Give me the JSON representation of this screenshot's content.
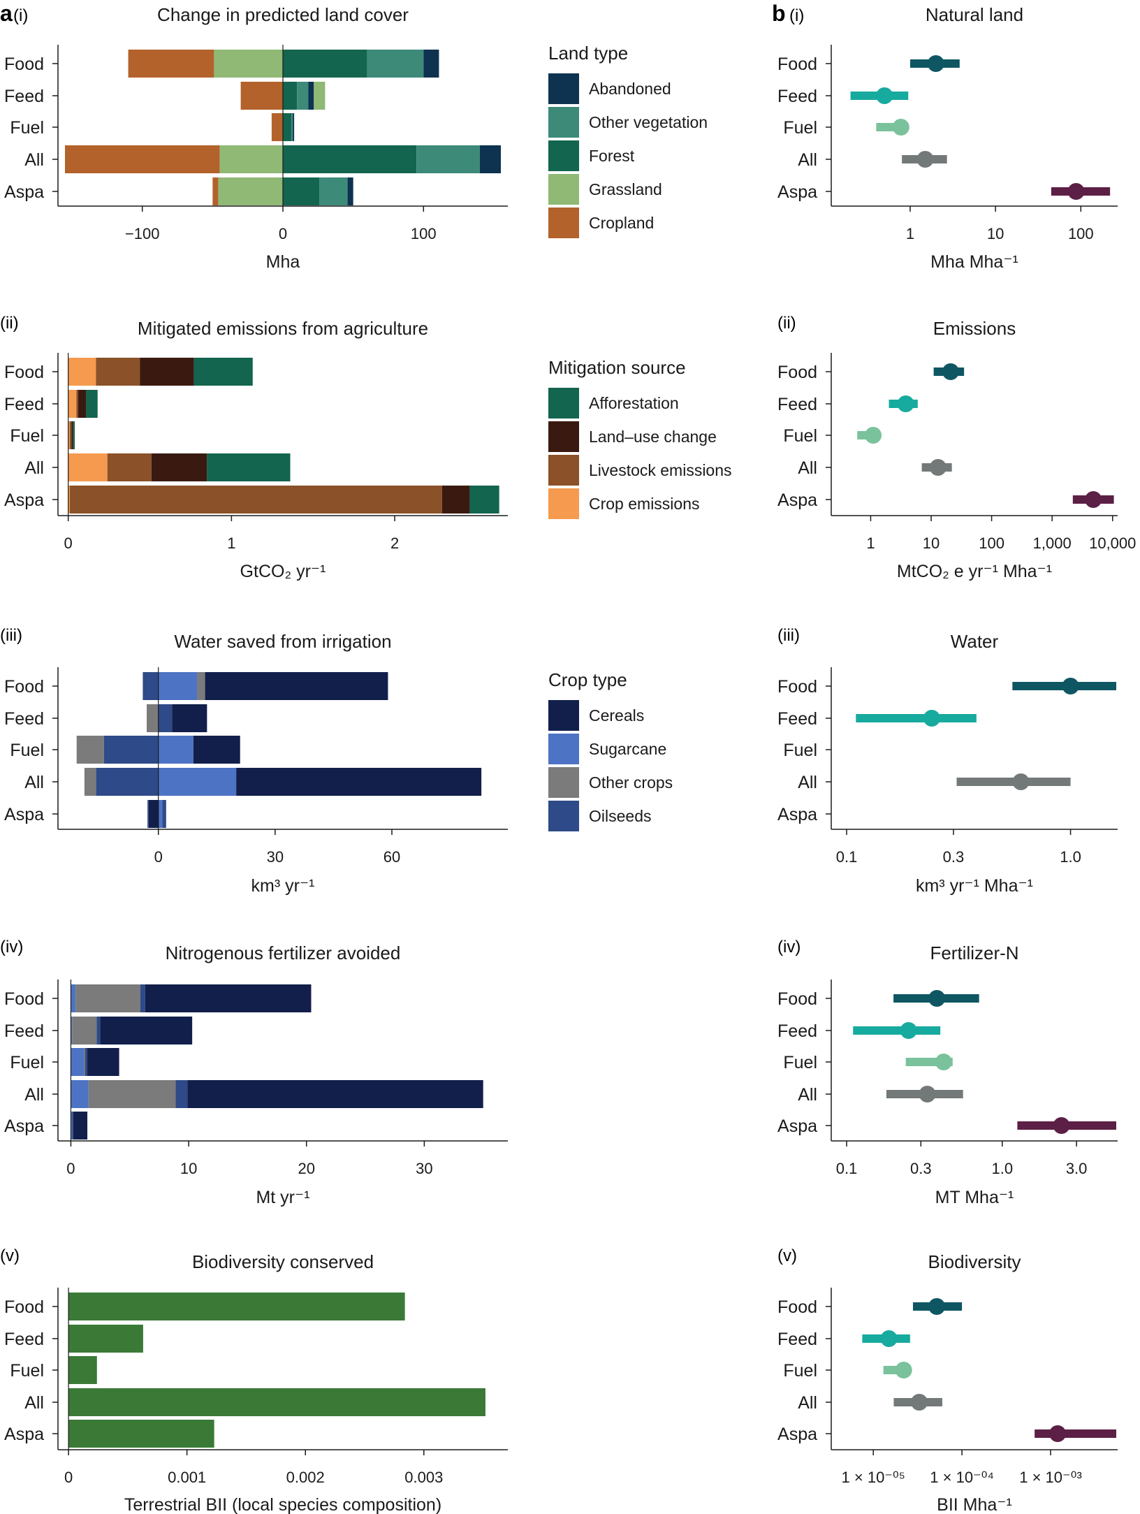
{
  "figure": {
    "panel_a_letter": "a",
    "panel_b_letter": "b",
    "row_labels": [
      "(i)",
      "(ii)",
      "(iii)",
      "(iv)",
      "(v)"
    ]
  },
  "categories": [
    "Food",
    "Feed",
    "Fuel",
    "All",
    "Aspa"
  ],
  "colors": {
    "abandoned": "#0d3350",
    "other_vegetation": "#3d8a79",
    "forest": "#13654f",
    "grassland": "#8fb975",
    "cropland": "#b3622b",
    "afforestation": "#13654f",
    "land_use_change": "#3a1a10",
    "livestock": "#8b5128",
    "crop_emissions": "#f59a4e",
    "cereals": "#121f4b",
    "sugarcane": "#4d73c4",
    "other_crops": "#7b7b7b",
    "oilseeds": "#2e4a88",
    "biodiversity": "#3a7a36",
    "dot_food": "#0f5663",
    "dot_feed": "#17aa9e",
    "dot_fuel": "#79c29b",
    "dot_all": "#737979",
    "dot_aspa": "#5c1f45",
    "axis": "#1a1a1a"
  },
  "chart_data": [
    {
      "id": "a1",
      "type": "bar",
      "orientation": "horizontal",
      "stacked": true,
      "title": "Change in predicted land cover",
      "xlabel": "Mha",
      "xlim": [
        -155,
        155
      ],
      "xticks": [
        -100,
        0,
        100
      ],
      "xticklabels": [
        "−100",
        "0",
        "100"
      ],
      "categories": [
        "Food",
        "Feed",
        "Fuel",
        "All",
        "Aspa"
      ],
      "legend_title": "Land type",
      "legend": [
        {
          "label": "Abandoned",
          "color": "#0d3350"
        },
        {
          "label": "Other vegetation",
          "color": "#3d8a79"
        },
        {
          "label": "Forest",
          "color": "#13654f"
        },
        {
          "label": "Grassland",
          "color": "#8fb975"
        },
        {
          "label": "Cropland",
          "color": "#b3622b"
        }
      ],
      "series": [
        {
          "name": "Forest",
          "color": "#13654f",
          "values": [
            60,
            10,
            6,
            95,
            26
          ]
        },
        {
          "name": "Other vegetation",
          "color": "#3d8a79",
          "values": [
            40,
            8,
            1,
            45,
            20
          ]
        },
        {
          "name": "Abandoned",
          "color": "#0d3350",
          "values": [
            11,
            4,
            1,
            15,
            4
          ]
        },
        {
          "name": "Grassland",
          "color": "#8fb975",
          "values": [
            -49,
            0,
            0,
            -45,
            -46
          ]
        },
        {
          "name": "Cropland",
          "color": "#b3622b",
          "values": [
            -61,
            -30,
            -8,
            -110,
            -4
          ]
        },
        {
          "name": "Grassland gain",
          "color": "#8fb975",
          "values": [
            0,
            8,
            0,
            0,
            0
          ]
        }
      ]
    },
    {
      "id": "a2",
      "type": "bar",
      "orientation": "horizontal",
      "stacked": true,
      "title": "Mitigated emissions from agriculture",
      "xlabel": "GtCO₂ yr⁻¹",
      "xlim": [
        -0.02,
        2.65
      ],
      "xticks": [
        0,
        1,
        2
      ],
      "xticklabels": [
        "0",
        "1",
        "2"
      ],
      "categories": [
        "Food",
        "Feed",
        "Fuel",
        "All",
        "Aspa"
      ],
      "legend_title": "Mitigation source",
      "legend": [
        {
          "label": "Afforestation",
          "color": "#13654f"
        },
        {
          "label": "Land–use change",
          "color": "#3a1a10"
        },
        {
          "label": "Livestock emissions",
          "color": "#8b5128"
        },
        {
          "label": "Crop emissions",
          "color": "#f59a4e"
        }
      ],
      "series": [
        {
          "name": "Crop emissions",
          "color": "#f59a4e",
          "values": [
            0.17,
            0.05,
            0.01,
            0.24,
            0.01
          ]
        },
        {
          "name": "Livestock emissions",
          "color": "#8b5128",
          "values": [
            0.27,
            0.01,
            0.01,
            0.27,
            2.28
          ]
        },
        {
          "name": "Land-use change",
          "color": "#3a1a10",
          "values": [
            0.33,
            0.05,
            0.01,
            0.34,
            0.17
          ]
        },
        {
          "name": "Afforestation",
          "color": "#13654f",
          "values": [
            0.36,
            0.07,
            0.01,
            0.51,
            0.18
          ]
        }
      ]
    },
    {
      "id": "a3",
      "type": "bar",
      "orientation": "horizontal",
      "stacked": true,
      "title": "Water saved from irrigation",
      "xlabel": "km³  yr⁻¹",
      "xlim": [
        -24,
        88
      ],
      "xticks": [
        0,
        30,
        60
      ],
      "xticklabels": [
        "0",
        "30",
        "60"
      ],
      "categories": [
        "Food",
        "Feed",
        "Fuel",
        "All",
        "Aspa"
      ],
      "legend_title": "Crop type",
      "legend": [
        {
          "label": "Cereals",
          "color": "#121f4b"
        },
        {
          "label": "Sugarcane",
          "color": "#4d73c4"
        },
        {
          "label": "Other crops",
          "color": "#7b7b7b"
        },
        {
          "label": "Oilseeds",
          "color": "#2e4a88"
        }
      ],
      "series": [
        {
          "name": "Sugarcane",
          "color": "#4d73c4",
          "values": [
            10,
            0,
            9,
            20,
            1
          ]
        },
        {
          "name": "Other crops",
          "color": "#7b7b7b",
          "values": [
            2,
            0,
            0,
            0,
            0
          ]
        },
        {
          "name": "Oilseeds",
          "color": "#2e4a88",
          "values": [
            0,
            3.5,
            0,
            0,
            1
          ]
        },
        {
          "name": "Cereals",
          "color": "#121f4b",
          "values": [
            47,
            9,
            12,
            63,
            0
          ]
        },
        {
          "name": "Oilseeds loss",
          "color": "#2e4a88",
          "values": [
            -4,
            0,
            -14,
            -16,
            0
          ]
        },
        {
          "name": "Other crops loss",
          "color": "#7b7b7b",
          "values": [
            0,
            -3,
            -7,
            -3,
            0
          ]
        },
        {
          "name": "Cereals loss",
          "color": "#121f4b",
          "values": [
            0,
            0,
            0,
            0,
            -2.5
          ]
        },
        {
          "name": "Other crops loss 2",
          "color": "#7b7b7b",
          "values": [
            0,
            0,
            0,
            0,
            0
          ]
        },
        {
          "name": "Oilseeds loss 2",
          "color": "#2e4a88",
          "values": [
            0,
            0,
            0,
            0,
            -0.3
          ]
        }
      ]
    },
    {
      "id": "a4",
      "type": "bar",
      "orientation": "horizontal",
      "stacked": true,
      "title": "Nitrogenous fertilizer avoided",
      "xlabel": "Mt yr⁻¹",
      "xlim": [
        -0.5,
        36.5
      ],
      "xticks": [
        0,
        10,
        20,
        30
      ],
      "xticklabels": [
        "0",
        "10",
        "20",
        "30"
      ],
      "categories": [
        "Food",
        "Feed",
        "Fuel",
        "All",
        "Aspa"
      ],
      "series": [
        {
          "name": "Sugarcane",
          "color": "#4d73c4",
          "values": [
            0.4,
            0.1,
            1.1,
            1.5,
            0.1
          ]
        },
        {
          "name": "Other crops",
          "color": "#7b7b7b",
          "values": [
            5.5,
            2.1,
            0.1,
            7.4,
            0.0
          ]
        },
        {
          "name": "Oilseeds",
          "color": "#2e4a88",
          "values": [
            0.4,
            0.3,
            0.2,
            1.0,
            0.1
          ]
        },
        {
          "name": "Cereals",
          "color": "#121f4b",
          "values": [
            14.1,
            7.8,
            2.7,
            25.1,
            1.2
          ]
        }
      ]
    },
    {
      "id": "a5",
      "type": "bar",
      "orientation": "horizontal",
      "title": "Biodiversity conserved",
      "xlabel": "Terrestrial BII (local species composition)",
      "xlim": [
        -3e-05,
        0.00365
      ],
      "xticks": [
        0,
        0.001,
        0.002,
        0.003
      ],
      "xticklabels": [
        "0",
        "0.001",
        "0.002",
        "0.003"
      ],
      "categories": [
        "Food",
        "Feed",
        "Fuel",
        "All",
        "Aspa"
      ],
      "series": [
        {
          "name": "BII",
          "color": "#3a7a36",
          "values": [
            0.00284,
            0.00063,
            0.00024,
            0.00352,
            0.00123
          ]
        }
      ]
    },
    {
      "id": "b1",
      "type": "scatter",
      "scale": "log",
      "title": "Natural land",
      "xlabel": "Mha Mha⁻¹",
      "xlim": [
        0.18,
        260
      ],
      "xticks": [
        1,
        10,
        100
      ],
      "xticklabels": [
        "1",
        "10",
        "100"
      ],
      "categories": [
        "Food",
        "Feed",
        "Fuel",
        "All",
        "Aspa"
      ],
      "points": [
        {
          "label": "Food",
          "value": 2.0,
          "low": 1.0,
          "high": 3.8
        },
        {
          "label": "Feed",
          "value": 0.5,
          "low": 0.2,
          "high": 0.95
        },
        {
          "label": "Fuel",
          "value": 0.78,
          "low": 0.4,
          "high": 0.85
        },
        {
          "label": "All",
          "value": 1.5,
          "low": 0.8,
          "high": 2.7
        },
        {
          "label": "Aspa",
          "value": 88,
          "low": 45,
          "high": 220
        }
      ]
    },
    {
      "id": "b2",
      "type": "scatter",
      "scale": "log",
      "title": "Emissions",
      "xlabel": "MtCO₂ e yr⁻¹ Mha⁻¹",
      "xlim": [
        0.4,
        11500
      ],
      "xticks": [
        1,
        10,
        100,
        1000,
        10000
      ],
      "xticklabels": [
        "1",
        "10",
        "100",
        "1,000",
        "10,000"
      ],
      "categories": [
        "Food",
        "Feed",
        "Fuel",
        "All",
        "Aspa"
      ],
      "points": [
        {
          "label": "Food",
          "value": 21,
          "low": 11,
          "high": 35
        },
        {
          "label": "Feed",
          "value": 3.8,
          "low": 2.0,
          "high": 6.0
        },
        {
          "label": "Fuel",
          "value": 1.1,
          "low": 0.6,
          "high": 1.3
        },
        {
          "label": "All",
          "value": 13,
          "low": 7,
          "high": 22
        },
        {
          "label": "Aspa",
          "value": 4800,
          "low": 2200,
          "high": 10500
        }
      ]
    },
    {
      "id": "b3",
      "type": "scatter",
      "scale": "log",
      "title": "Water",
      "xlabel": "km³ yr⁻¹ Mha⁻¹",
      "xlim": [
        0.1,
        1.6
      ],
      "xticks": [
        0.1,
        0.3,
        1.0
      ],
      "xticklabels": [
        "0.1",
        "0.3",
        "1.0"
      ],
      "categories": [
        "Food",
        "Feed",
        "Fuel",
        "All",
        "Aspa"
      ],
      "points": [
        {
          "label": "Food",
          "value": 1.0,
          "low": 0.55,
          "high": 1.6
        },
        {
          "label": "Feed",
          "value": 0.24,
          "low": 0.11,
          "high": 0.38
        },
        {
          "label": "All",
          "value": 0.6,
          "low": 0.31,
          "high": 1.0
        }
      ]
    },
    {
      "id": "b4",
      "type": "scatter",
      "scale": "log",
      "title": "Fertilizer-N",
      "xlabel": "MT Mha⁻¹",
      "xlim": [
        0.1,
        5.4
      ],
      "xticks": [
        0.1,
        0.3,
        1.0,
        3.0
      ],
      "xticklabels": [
        "0.1",
        "0.3",
        "1.0",
        "3.0"
      ],
      "categories": [
        "Food",
        "Feed",
        "Fuel",
        "All",
        "Aspa"
      ],
      "points": [
        {
          "label": "Food",
          "value": 0.38,
          "low": 0.2,
          "high": 0.71
        },
        {
          "label": "Feed",
          "value": 0.25,
          "low": 0.11,
          "high": 0.4
        },
        {
          "label": "Fuel",
          "value": 0.42,
          "low": 0.24,
          "high": 0.48
        },
        {
          "label": "All",
          "value": 0.33,
          "low": 0.18,
          "high": 0.56
        },
        {
          "label": "Aspa",
          "value": 2.4,
          "low": 1.25,
          "high": 5.4
        }
      ]
    },
    {
      "id": "b5",
      "type": "scatter",
      "scale": "log",
      "title": "Biodiversity",
      "xlabel": "BII Mha⁻¹",
      "xlim": [
        5e-06,
        0.0055
      ],
      "xticks": [
        1e-05,
        0.0001,
        0.001
      ],
      "xticklabels": [
        "1 × 10⁻⁰⁵",
        "1 × 10⁻⁰⁴",
        "1 × 10⁻⁰³"
      ],
      "categories": [
        "Food",
        "Feed",
        "Fuel",
        "All",
        "Aspa"
      ],
      "points": [
        {
          "label": "Food",
          "value": 5.2e-05,
          "low": 2.8e-05,
          "high": 0.0001
        },
        {
          "label": "Feed",
          "value": 1.5e-05,
          "low": 7.5e-06,
          "high": 2.6e-05
        },
        {
          "label": "Fuel",
          "value": 2.2e-05,
          "low": 1.3e-05,
          "high": 2.6e-05
        },
        {
          "label": "All",
          "value": 3.3e-05,
          "low": 1.7e-05,
          "high": 6e-05
        },
        {
          "label": "Aspa",
          "value": 0.0012,
          "low": 0.00066,
          "high": 0.0055
        }
      ]
    }
  ]
}
